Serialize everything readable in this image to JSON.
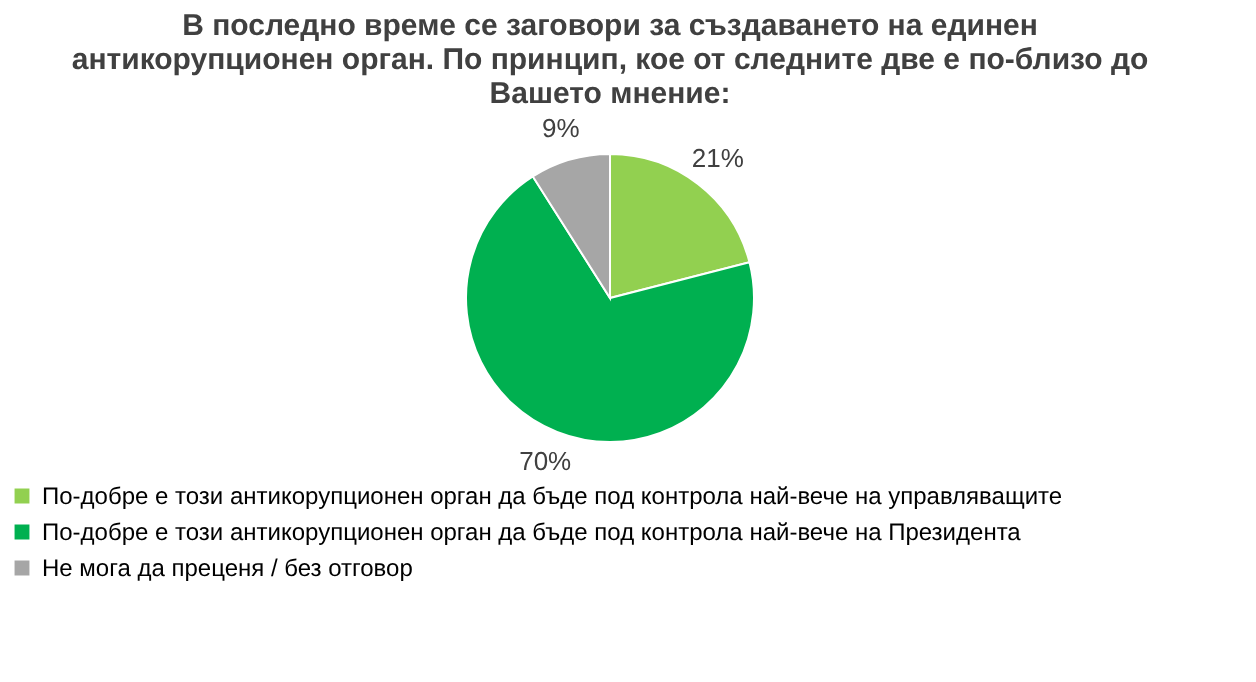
{
  "chart_data": {
    "type": "pie",
    "title": "В последно време се заговори за създаването на единен антикорупционен орган. По принцип, кое от следните две е по-близо до Вашето мнение:",
    "categories": [
      "По-добре е този антикорупционен орган да бъде под контрола най-вече на управляващите",
      "По-добре е този антикорупционен орган да бъде под контрола най-вече на Президента",
      "Не мога да преценя / без отговор"
    ],
    "values": [
      21,
      70,
      9
    ],
    "value_labels": [
      "21%",
      "70%",
      "9%"
    ],
    "colors": [
      "#92d050",
      "#00b050",
      "#a6a6a6"
    ],
    "legend": "bottom"
  }
}
